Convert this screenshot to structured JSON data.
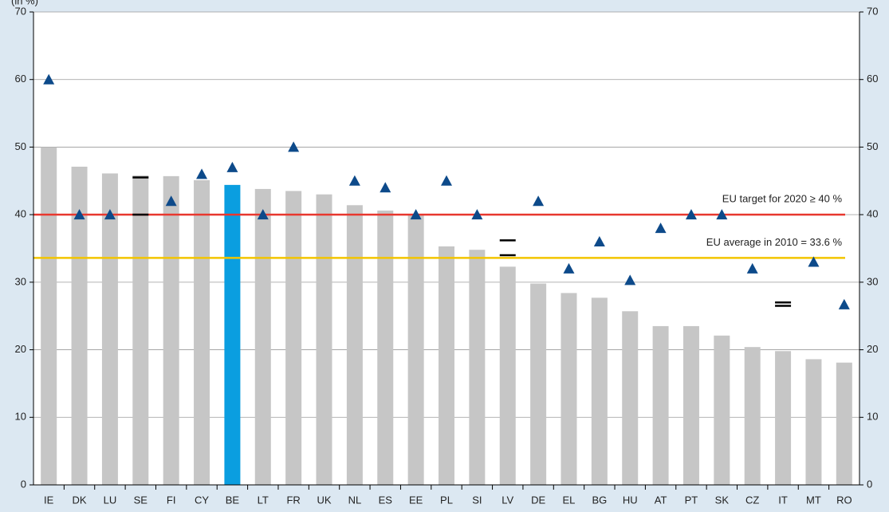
{
  "chart_data": {
    "type": "bar",
    "y_unit_label": "(in %)",
    "categories": [
      "IE",
      "DK",
      "LU",
      "SE",
      "FI",
      "CY",
      "BE",
      "LT",
      "FR",
      "UK",
      "NL",
      "ES",
      "EE",
      "PL",
      "SI",
      "LV",
      "DE",
      "EL",
      "BG",
      "HU",
      "AT",
      "PT",
      "SK",
      "CZ",
      "IT",
      "MT",
      "RO"
    ],
    "values": [
      50.0,
      47.1,
      46.1,
      45.8,
      45.7,
      45.1,
      44.4,
      43.8,
      43.5,
      43.0,
      41.4,
      40.6,
      40.0,
      35.3,
      34.8,
      32.3,
      29.8,
      28.4,
      27.7,
      25.7,
      23.5,
      23.5,
      22.1,
      20.4,
      19.8,
      18.6,
      18.1
    ],
    "colors": [
      "#c6c6c6",
      "#c6c6c6",
      "#c6c6c6",
      "#c6c6c6",
      "#c6c6c6",
      "#c6c6c6",
      "#0a9ee0",
      "#c6c6c6",
      "#c6c6c6",
      "#c6c6c6",
      "#c6c6c6",
      "#c6c6c6",
      "#c6c6c6",
      "#c6c6c6",
      "#c6c6c6",
      "#c6c6c6",
      "#c6c6c6",
      "#c6c6c6",
      "#c6c6c6",
      "#c6c6c6",
      "#c6c6c6",
      "#c6c6c6",
      "#c6c6c6",
      "#c6c6c6",
      "#c6c6c6",
      "#c6c6c6",
      "#c6c6c6"
    ],
    "targets": [
      60,
      40,
      40,
      null,
      42,
      46,
      47,
      40,
      50,
      null,
      45,
      44,
      40,
      45,
      40,
      null,
      42,
      32,
      36,
      30.3,
      38,
      40,
      40,
      32,
      null,
      33,
      26.7
    ],
    "target_color": "#0d4a8a",
    "target_range_low": [
      null,
      null,
      null,
      40,
      null,
      null,
      null,
      null,
      null,
      null,
      null,
      null,
      null,
      null,
      null,
      34,
      null,
      null,
      null,
      null,
      null,
      null,
      null,
      null,
      26.5,
      null,
      null
    ],
    "target_range_high": [
      null,
      null,
      null,
      45.5,
      null,
      null,
      null,
      null,
      null,
      null,
      null,
      null,
      null,
      null,
      null,
      36.2,
      null,
      null,
      null,
      null,
      null,
      null,
      null,
      null,
      27,
      null,
      null
    ],
    "reference_lines": [
      {
        "value": 40,
        "color": "#e8382f",
        "label": "EU target for  2020 ≥ 40 %"
      },
      {
        "value": 33.6,
        "color": "#f2c400",
        "label": "EU average in 2010 = 33.6 %"
      }
    ],
    "ylim": [
      0,
      70
    ],
    "yticks": [
      0,
      10,
      20,
      30,
      40,
      50,
      60,
      70
    ],
    "grid": true
  }
}
